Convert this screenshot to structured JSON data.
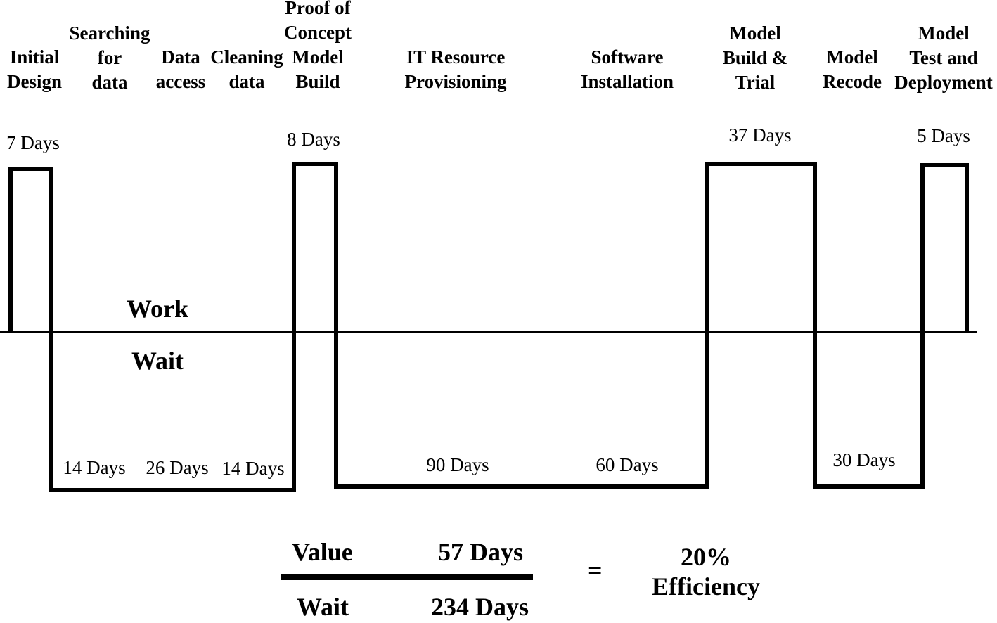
{
  "stages": [
    {
      "label": "Initial\nDesign"
    },
    {
      "label": "Searching\nfor\ndata"
    },
    {
      "label": "Data\naccess"
    },
    {
      "label": "Cleaning\ndata"
    },
    {
      "label": "Proof of\nConcept\nModel\nBuild"
    },
    {
      "label": "IT Resource\nProvisioning"
    },
    {
      "label": "Software\nInstallation"
    },
    {
      "label": "Model\nBuild &\nTrial"
    },
    {
      "label": "Model\nRecode"
    },
    {
      "label": "Model\nTest and\nDeployment"
    }
  ],
  "work_durations": [
    "7 Days",
    "8 Days",
    "37 Days",
    "5 Days"
  ],
  "wait_durations": [
    "14 Days",
    "26 Days",
    "14 Days",
    "90 Days",
    "60 Days",
    "30 Days"
  ],
  "axis": {
    "work_label": "Work",
    "wait_label": "Wait"
  },
  "equation": {
    "value_label": "Value",
    "value_days": "57 Days",
    "wait_label": "Wait",
    "wait_days": "234 Days",
    "equals": "=",
    "efficiency_percent": "20%",
    "efficiency_label": "Efficiency"
  }
}
